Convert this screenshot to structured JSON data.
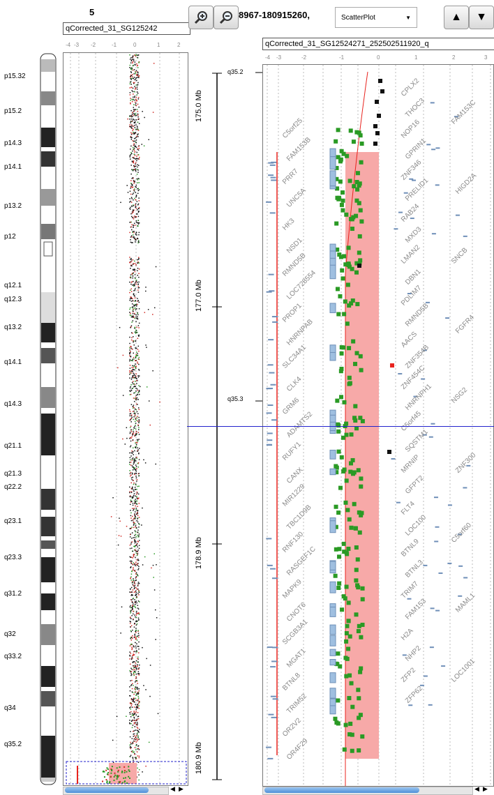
{
  "chromosome": {
    "number": "5",
    "bands": [
      {
        "label": "p15.32"
      },
      {
        "label": "p15.2"
      },
      {
        "label": "p14.3"
      },
      {
        "label": "p14.1"
      },
      {
        "label": "p13.2"
      },
      {
        "label": "p12"
      },
      {
        "label": "q12.1"
      },
      {
        "label": "q12.3"
      },
      {
        "label": "q13.2"
      },
      {
        "label": "q14.1"
      },
      {
        "label": "q14.3"
      },
      {
        "label": "q21.1"
      },
      {
        "label": "q21.3"
      },
      {
        "label": "q22.2"
      },
      {
        "label": "q23.1"
      },
      {
        "label": "q23.3"
      },
      {
        "label": "q31.2"
      },
      {
        "label": "q32"
      },
      {
        "label": "q33.2"
      },
      {
        "label": "q34"
      },
      {
        "label": "q35.2"
      }
    ]
  },
  "left_track": {
    "label": "qCorrected_31_SG125242",
    "axis_ticks": [
      "-4",
      "-3",
      "-2",
      "-1",
      "0",
      "1",
      "2"
    ]
  },
  "toolbar": {
    "zoom_in": "zoom in",
    "zoom_out": "zoom out",
    "sample_id": "8967-180915260,",
    "plot_type": "ScatterPlot",
    "dropdown_arrow": "▼",
    "up_arrow": "▲",
    "down_arrow": "▼"
  },
  "middle": {
    "bands": [
      "q35.2",
      "q35.3"
    ],
    "mb_labels": [
      "175.0 Mb",
      "177.0 Mb",
      "178.9 Mb",
      "180.9 Mb"
    ]
  },
  "right_track": {
    "label": "qCorrected_31_SG12524271_252502511920_q",
    "axis_ticks": [
      "-4",
      "-3",
      "-2",
      "-1",
      "0",
      "1",
      "2",
      "3"
    ],
    "genes_col1": [
      "C5orf25",
      "FAM153B",
      "PRR7",
      "UNC5A",
      "HK3",
      "NSD1",
      "RMND5B",
      "LOC728554",
      "PROP1",
      "HNRNPAB",
      "SLC34A1",
      "CLK4",
      "GRM6",
      "ADAMTS2",
      "RUFY1",
      "CANX",
      "MIR1229",
      "TBC1D9B",
      "RNF130",
      "RASGEF1C",
      "MAPK9",
      "CNOT6",
      "SCGB3A1",
      "MGAT1",
      "BTNL8",
      "TRIM52",
      "OR2V2",
      "OR4F29"
    ],
    "genes_col2": [
      "CPLX2",
      "THOC3",
      "NOP16",
      "GPRIN1",
      "ZNF346",
      "PRELID1",
      "RAB24",
      "MXD3",
      "LMAN2",
      "DBN1",
      "PDLIM7",
      "RMND5B",
      "AACS",
      "ZNF354B",
      "ZNF454C",
      "HNRNPH1",
      "C5orf45",
      "SQSTM1",
      "MRNIP",
      "GFPT2",
      "FLT4",
      "LOC100",
      "BTNL9",
      "BTNL3",
      "TRIM7",
      "FAM153",
      "H2A",
      "NHP2",
      "ZFP2",
      "ZFP62"
    ],
    "genes_col3": [
      "FAM153C",
      "HIGD2A",
      "SNCB",
      "FGFR4",
      "NSG2",
      "ZNF300",
      "C5orf60",
      "MAML1",
      "LOC1001"
    ]
  },
  "colors": {
    "accent_red": "#e8231e",
    "highlight_pink": "#f7a9a8",
    "green_points": "#2a9a24",
    "black_points": "#111111",
    "blue_line": "#2222cc",
    "band_dark": "#222222",
    "band_gray": "#888888"
  },
  "icons": {
    "zoom_in": "magnifier-plus-icon",
    "zoom_out": "magnifier-minus-icon",
    "scroll_left": "triangle-left-icon",
    "scroll_right": "triangle-right-icon"
  }
}
